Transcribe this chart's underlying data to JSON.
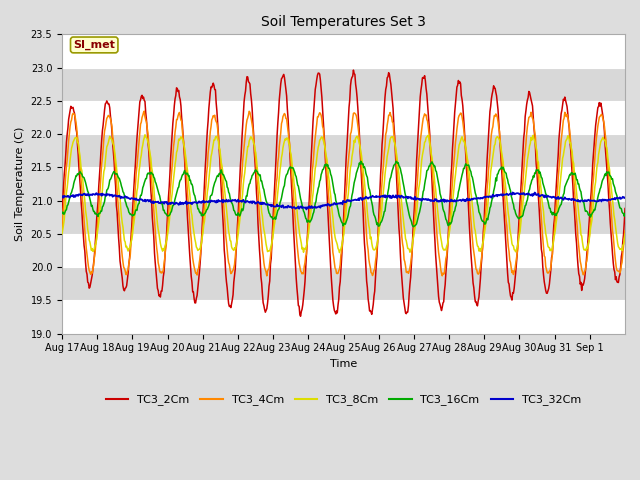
{
  "title": "Soil Temperatures Set 3",
  "xlabel": "Time",
  "ylabel": "Soil Temperature (C)",
  "ylim": [
    19.0,
    23.5
  ],
  "yticks": [
    19.0,
    19.5,
    20.0,
    20.5,
    21.0,
    21.5,
    22.0,
    22.5,
    23.0,
    23.5
  ],
  "xtick_labels": [
    "Aug 17",
    "Aug 18",
    "Aug 19",
    "Aug 20",
    "Aug 21",
    "Aug 22",
    "Aug 23",
    "Aug 24",
    "Aug 25",
    "Aug 26",
    "Aug 27",
    "Aug 28",
    "Aug 29",
    "Aug 30",
    "Aug 31",
    "Sep 1"
  ],
  "series_names": [
    "TC3_2Cm",
    "TC3_4Cm",
    "TC3_8Cm",
    "TC3_16Cm",
    "TC3_32Cm"
  ],
  "series_colors": [
    "#cc0000",
    "#ff8800",
    "#dddd00",
    "#00aa00",
    "#0000cc"
  ],
  "background_color": "#dddddd",
  "plot_bg_color": "#d8d8d8",
  "grid_color": "#ffffff",
  "annotation_text": "SI_met",
  "annotation_bg": "#ffffcc",
  "annotation_border": "#999900",
  "annotation_text_color": "#880000",
  "n_days": 16,
  "samples_per_day": 48,
  "tc2_mean": 21.1,
  "tc4_mean": 21.1,
  "tc8_mean": 21.1,
  "tc16_mean": 21.1,
  "tc32_mean": 21.05,
  "legend_fontsize": 8,
  "title_fontsize": 10,
  "axis_fontsize": 8,
  "tick_fontsize": 7
}
